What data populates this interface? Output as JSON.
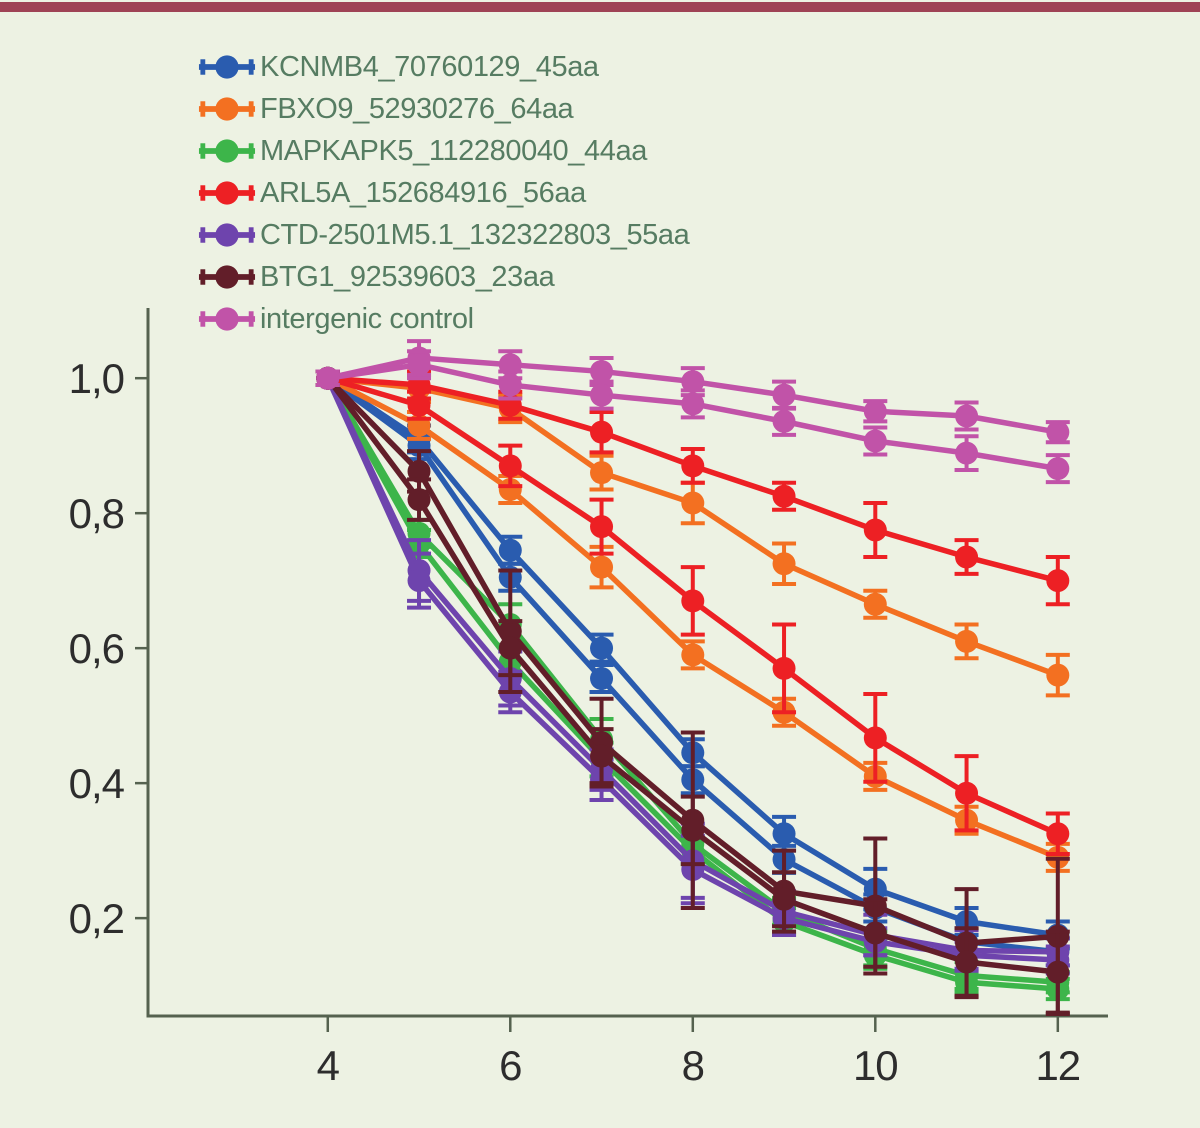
{
  "page": {
    "background_color": "#edf2e3",
    "top_bar_color": "#9f4355"
  },
  "legend": {
    "text_color": "#567c62",
    "items": [
      {
        "label": "KCNMB4_70760129_45aa",
        "color": "#2a5caf"
      },
      {
        "label": "FBXO9_52930276_64aa",
        "color": "#f37021"
      },
      {
        "label": "MAPKAPK5_112280040_44aa",
        "color": "#3db54a"
      },
      {
        "label": "ARL5A_152684916_56aa",
        "color": "#ed2024"
      },
      {
        "label": "CTD-2501M5.1_132322803_55aa",
        "color": "#6e44ad"
      },
      {
        "label": "BTG1_92539603_23aa",
        "color": "#621e29"
      },
      {
        "label": "intergenic control",
        "color": "#c153a8"
      }
    ]
  },
  "chart_data": {
    "type": "line",
    "title": "",
    "xlabel": "",
    "ylabel": "",
    "grid": false,
    "legend_position": "top-left",
    "error_bars": true,
    "marker": "circle",
    "decimal_separator": ",",
    "axis_color": "#55624f",
    "tick_label_color": "#2d2d2d",
    "x": [
      4,
      5,
      6,
      7,
      8,
      9,
      10,
      11,
      12
    ],
    "xticks": [
      4,
      6,
      8,
      10,
      12
    ],
    "xtick_labels": [
      "4",
      "6",
      "8",
      "10",
      "12"
    ],
    "yticks": [
      1.0,
      0.8,
      0.6,
      0.4,
      0.2
    ],
    "ytick_labels": [
      "1,0",
      "0,8",
      "0,6",
      "0,4",
      "0,2"
    ],
    "xlim": [
      2.03,
      12.55
    ],
    "ylim": [
      0.055,
      1.104
    ],
    "series": [
      {
        "name": "KCNMB4_70760129_45aa",
        "color": "#2a5caf",
        "lines": [
          {
            "y": [
              1.0,
              0.91,
              0.745,
              0.6,
              0.445,
              0.325,
              0.243,
              0.195,
              0.175
            ],
            "err": [
              0.01,
              0.02,
              0.02,
              0.02,
              0.02,
              0.025,
              0.03,
              0.02,
              0.02
            ]
          },
          {
            "y": [
              1.0,
              0.9,
              0.705,
              0.555,
              0.405,
              0.287,
              0.215,
              0.165,
              0.15
            ],
            "err": [
              0.01,
              0.02,
              0.02,
              0.02,
              0.02,
              0.02,
              0.02,
              0.02,
              0.02
            ]
          }
        ]
      },
      {
        "name": "FBXO9_52930276_64aa",
        "color": "#f37021",
        "lines": [
          {
            "y": [
              1.0,
              0.985,
              0.955,
              0.86,
              0.815,
              0.725,
              0.665,
              0.61,
              0.56
            ],
            "err": [
              0.01,
              0.02,
              0.02,
              0.025,
              0.03,
              0.03,
              0.02,
              0.025,
              0.03
            ]
          },
          {
            "y": [
              1.0,
              0.93,
              0.835,
              0.72,
              0.59,
              0.505,
              0.41,
              0.345,
              0.29
            ],
            "err": [
              0.01,
              0.02,
              0.02,
              0.03,
              0.02,
              0.02,
              0.02,
              0.02,
              0.02
            ]
          }
        ]
      },
      {
        "name": "MAPKAPK5_112280040_44aa",
        "color": "#3db54a",
        "lines": [
          {
            "y": [
              1.0,
              0.77,
              0.635,
              0.465,
              0.31,
              0.21,
              0.155,
              0.115,
              0.105
            ],
            "err": [
              0.01,
              0.02,
              0.03,
              0.03,
              0.02,
              0.02,
              0.025,
              0.02,
              0.015
            ]
          },
          {
            "y": [
              1.0,
              0.755,
              0.58,
              0.435,
              0.3,
              0.195,
              0.145,
              0.105,
              0.095
            ],
            "err": [
              0.01,
              0.02,
              0.02,
              0.025,
              0.02,
              0.02,
              0.02,
              0.015,
              0.015
            ]
          }
        ]
      },
      {
        "name": "ARL5A_152684916_56aa",
        "color": "#ed2024",
        "lines": [
          {
            "y": [
              1.0,
              0.99,
              0.96,
              0.92,
              0.87,
              0.825,
              0.775,
              0.735,
              0.7
            ],
            "err": [
              0.01,
              0.02,
              0.02,
              0.03,
              0.025,
              0.02,
              0.04,
              0.025,
              0.035
            ]
          },
          {
            "y": [
              1.0,
              0.96,
              0.87,
              0.78,
              0.67,
              0.57,
              0.467,
              0.385,
              0.325
            ],
            "err": [
              0.01,
              0.02,
              0.03,
              0.04,
              0.05,
              0.065,
              0.065,
              0.055,
              0.03
            ]
          }
        ]
      },
      {
        "name": "CTD-2501M5.1_132322803_55aa",
        "color": "#6e44ad",
        "lines": [
          {
            "y": [
              1.0,
              0.715,
              0.555,
              0.42,
              0.285,
              0.21,
              0.175,
              0.152,
              0.15
            ],
            "err": [
              0.01,
              0.045,
              0.04,
              0.03,
              0.055,
              0.03,
              0.03,
              0.03,
              0.02
            ]
          },
          {
            "y": [
              1.0,
              0.7,
              0.535,
              0.405,
              0.272,
              0.2,
              0.165,
              0.145,
              0.138
            ],
            "err": [
              0.01,
              0.04,
              0.03,
              0.03,
              0.05,
              0.025,
              0.02,
              0.02,
              0.02
            ]
          }
        ]
      },
      {
        "name": "BTG1_92539603_23aa",
        "color": "#621e29",
        "lines": [
          {
            "y": [
              1.0,
              0.862,
              0.625,
              0.46,
              0.345,
              0.24,
              0.218,
              0.163,
              0.173
            ],
            "err": [
              0.01,
              0.03,
              0.09,
              0.065,
              0.13,
              0.06,
              0.1,
              0.08,
              0.115
            ]
          },
          {
            "y": [
              1.0,
              0.82,
              0.6,
              0.44,
              0.33,
              0.228,
              0.178,
              0.135,
              0.12
            ],
            "err": [
              0.01,
              0.03,
              0.04,
              0.04,
              0.05,
              0.04,
              0.05,
              0.05,
              0.06
            ]
          }
        ]
      },
      {
        "name": "intergenic control",
        "color": "#c153a8",
        "lines": [
          {
            "y": [
              1.0,
              1.03,
              1.02,
              1.01,
              0.995,
              0.975,
              0.951,
              0.944,
              0.92
            ],
            "err": [
              0.01,
              0.025,
              0.02,
              0.02,
              0.02,
              0.02,
              0.015,
              0.02,
              0.015
            ]
          },
          {
            "y": [
              1.0,
              1.02,
              0.99,
              0.975,
              0.962,
              0.936,
              0.907,
              0.889,
              0.866
            ],
            "err": [
              0.01,
              0.02,
              0.02,
              0.02,
              0.02,
              0.02,
              0.02,
              0.025,
              0.02
            ]
          }
        ]
      }
    ]
  }
}
